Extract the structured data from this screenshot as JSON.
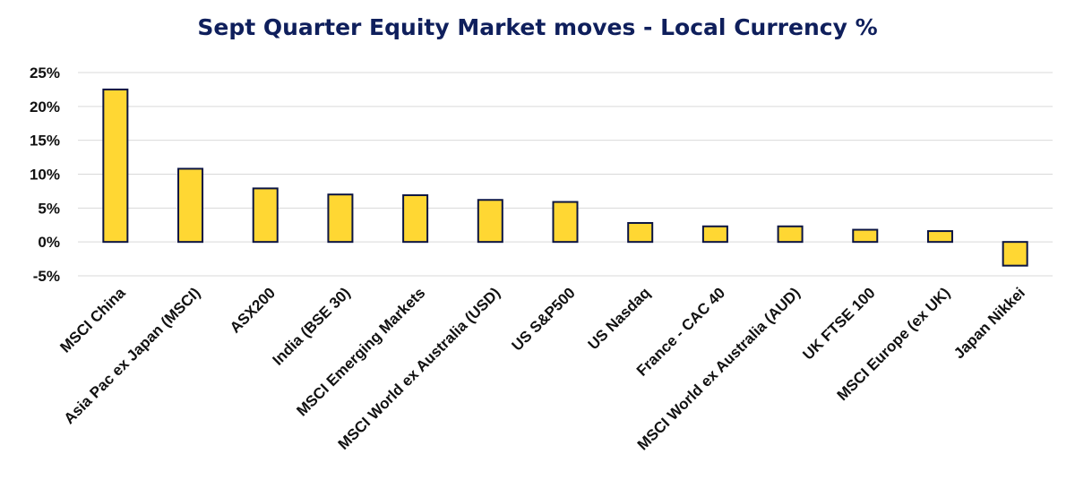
{
  "title": "Sept Quarter Equity Market moves - Local Currency %",
  "colors": {
    "bar_fill": "#FFD733",
    "bar_stroke": "#0B1442",
    "grid": "#d9d9d9",
    "title": "#0f1f5c"
  },
  "chart_data": {
    "type": "bar",
    "title": "Sept Quarter Equity Market moves - Local Currency %",
    "xlabel": "",
    "ylabel": "",
    "ylim": [
      -5,
      25
    ],
    "yticks": [
      25,
      20,
      15,
      10,
      5,
      0,
      -5
    ],
    "ytick_labels": [
      "25%",
      "20%",
      "15%",
      "10%",
      "5%",
      "0%",
      "-5%"
    ],
    "grid": true,
    "categories": [
      "MSCI China",
      "Asia Pac ex Japan (MSCI)",
      "ASX200",
      "India (BSE 30)",
      "MSCI Emerging Markets",
      "MSCI World ex Australia (USD)",
      "US S&P500",
      "US Nasdaq",
      "France - CAC 40",
      "MSCI World ex Australia (AUD)",
      "UK FTSE 100",
      "MSCI Europe (ex UK)",
      "Japan Nikkei"
    ],
    "values": [
      22.5,
      10.8,
      7.9,
      7.0,
      6.9,
      6.2,
      5.9,
      2.8,
      2.3,
      2.3,
      1.8,
      1.6,
      -3.5
    ]
  }
}
